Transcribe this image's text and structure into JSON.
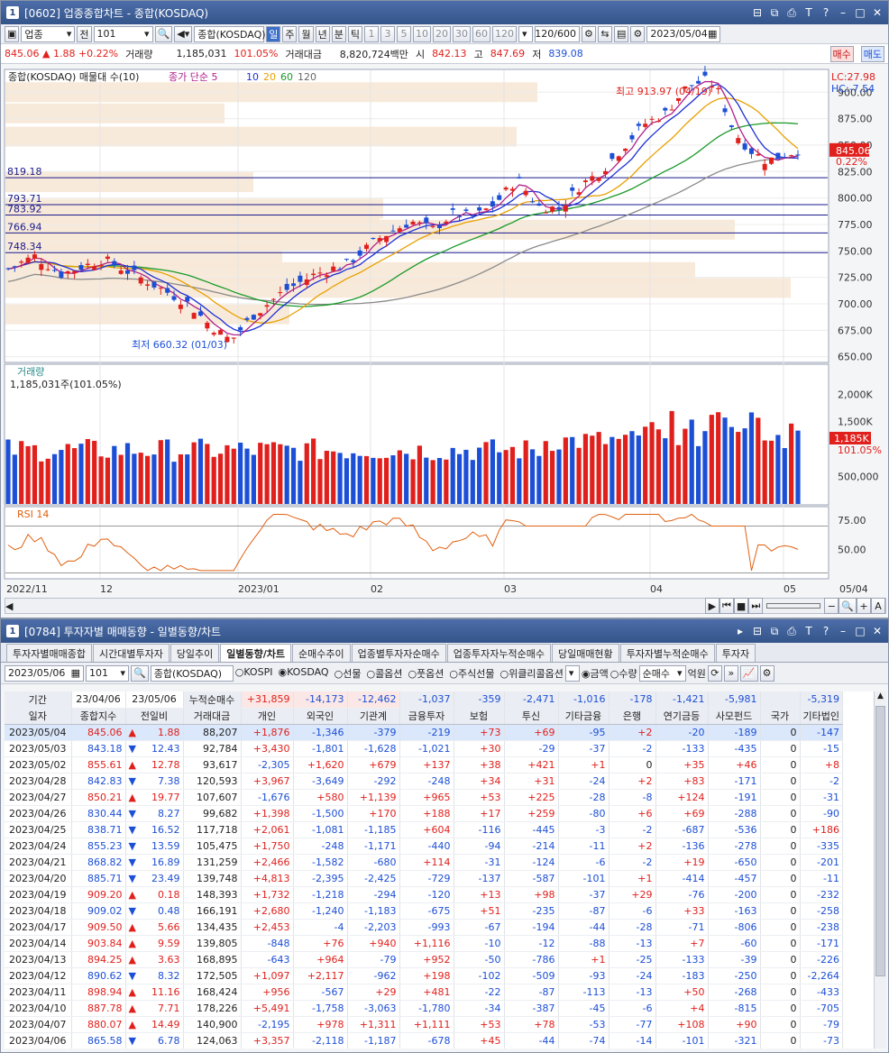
{
  "top": {
    "num": "1",
    "title": "[0602] 업종종합차트 - 종합(KOSDAQ)",
    "tb1": {
      "type": "업종",
      "sel": "전",
      "code": "101",
      "name": "종합(KOSDAQ)",
      "periods": [
        "일",
        "주",
        "월",
        "년",
        "분",
        "틱"
      ],
      "nums": [
        "1",
        "3",
        "5",
        "10",
        "20",
        "30",
        "60",
        "120"
      ],
      "count": "120/600",
      "date": "2023/05/04"
    },
    "q": {
      "price": "845.06",
      "chg": "1.88",
      "pct": "+0.22%",
      "vol_l": "거래량",
      "vol": "1,185,031",
      "vpct": "101.05%",
      "amt_l": "거래대금",
      "amt": "8,820,724백만",
      "o_l": "시",
      "o": "842.13",
      "h_l": "고",
      "h": "847.69",
      "l_l": "저",
      "l": "839.08",
      "buy": "매수",
      "sell": "매도"
    },
    "legend": {
      "name": "종합(KOSDAQ) 매물대 수(10)",
      "ma": "종가 단순 5",
      "m10": "10",
      "m20": "20",
      "m60": "60",
      "m120": "120"
    },
    "lc": "LC:27.98",
    "hc": "HC:-7.54",
    "hi": "최고 913.97 (04/19)",
    "lo": "최저 660.32 (01/03)",
    "last": "845.06",
    "lastpct": "0.22%",
    "levels": [
      "819.18",
      "793.71",
      "783.92",
      "766.94",
      "748.34"
    ],
    "yticks": [
      "900.00",
      "875.00",
      "850.00",
      "825.00",
      "800.00",
      "775.00",
      "750.00",
      "725.00",
      "700.00",
      "675.00",
      "650.00"
    ],
    "vol": {
      "title": "거래량",
      "info": "1,185,031주(101.05%)",
      "ticks": [
        "2,000K",
        "1,500K",
        "500,000"
      ],
      "last": "1,185K",
      "pct": "101.05%"
    },
    "rsi": {
      "title": "RSI 14",
      "ticks": [
        "75.00",
        "50.00"
      ]
    },
    "xticks": [
      "2022/11",
      "12",
      "2023/01",
      "02",
      "03",
      "04",
      "05",
      "05/04"
    ]
  },
  "bot": {
    "num": "1",
    "title": "[0784] 투자자별 매매동향 - 일별동향/차트",
    "tabs": [
      "투자자별매매종합",
      "시간대별투자자",
      "당일추이",
      "일별동향/차트",
      "순매수추이",
      "업종별투자자순매수",
      "업종투자자누적순매수",
      "당일매매현황",
      "투자자별누적순매수",
      "투자자"
    ],
    "f": {
      "date": "2023/05/06",
      "code": "101",
      "name": "종합(KOSDAQ)",
      "radios": [
        "KOSPI",
        "KOSDAQ",
        "선물",
        "콜옵션",
        "풋옵션",
        "주식선물",
        "위클리콜옵션"
      ],
      "r2": [
        "금액",
        "수량"
      ],
      "type": "순매수",
      "unit": "억원"
    },
    "per": {
      "label": "기간",
      "from": "23/04/06",
      "to": "23/05/06",
      "cum": "누적순매수",
      "vals": [
        "+31,859",
        "-14,173",
        "-12,462",
        "-1,037",
        "-359",
        "-2,471",
        "-1,016",
        "-178",
        "-1,421",
        "-5,981",
        "",
        "-5,319"
      ]
    },
    "cols": [
      "일자",
      "종합지수",
      "전일비",
      "거래대금",
      "개인",
      "외국인",
      "기관계",
      "금융투자",
      "보험",
      "투신",
      "기타금융",
      "은행",
      "연기금등",
      "사모펀드",
      "국가",
      "기타법인"
    ],
    "rows": [
      [
        "2023/05/04",
        "845.06",
        "u",
        "1.88",
        "88,207",
        "+1,876",
        "-1,346",
        "-379",
        "-219",
        "+73",
        "+69",
        "-95",
        "+2",
        "-20",
        "-189",
        "0",
        "-147"
      ],
      [
        "2023/05/03",
        "843.18",
        "d",
        "12.43",
        "92,784",
        "+3,430",
        "-1,801",
        "-1,628",
        "-1,021",
        "+30",
        "-29",
        "-37",
        "-2",
        "-133",
        "-435",
        "0",
        "-15"
      ],
      [
        "2023/05/02",
        "855.61",
        "u",
        "12.78",
        "93,617",
        "-2,305",
        "+1,620",
        "+679",
        "+137",
        "+38",
        "+421",
        "+1",
        "0",
        "+35",
        "+46",
        "0",
        "+8"
      ],
      [
        "2023/04/28",
        "842.83",
        "d",
        "7.38",
        "120,593",
        "+3,967",
        "-3,649",
        "-292",
        "-248",
        "+34",
        "+31",
        "-24",
        "+2",
        "+83",
        "-171",
        "0",
        "-2"
      ],
      [
        "2023/04/27",
        "850.21",
        "u",
        "19.77",
        "107,607",
        "-1,676",
        "+580",
        "+1,139",
        "+965",
        "+53",
        "+225",
        "-28",
        "-8",
        "+124",
        "-191",
        "0",
        "-31"
      ],
      [
        "2023/04/26",
        "830.44",
        "d",
        "8.27",
        "99,682",
        "+1,398",
        "-1,500",
        "+170",
        "+188",
        "+17",
        "+259",
        "-80",
        "+6",
        "+69",
        "-288",
        "0",
        "-90"
      ],
      [
        "2023/04/25",
        "838.71",
        "d",
        "16.52",
        "117,718",
        "+2,061",
        "-1,081",
        "-1,185",
        "+604",
        "-116",
        "-445",
        "-3",
        "-2",
        "-687",
        "-536",
        "0",
        "+186"
      ],
      [
        "2023/04/24",
        "855.23",
        "d",
        "13.59",
        "105,475",
        "+1,750",
        "-248",
        "-1,171",
        "-440",
        "-94",
        "-214",
        "-11",
        "+2",
        "-136",
        "-278",
        "0",
        "-335"
      ],
      [
        "2023/04/21",
        "868.82",
        "d",
        "16.89",
        "131,259",
        "+2,466",
        "-1,582",
        "-680",
        "+114",
        "-31",
        "-124",
        "-6",
        "-2",
        "+19",
        "-650",
        "0",
        "-201"
      ],
      [
        "2023/04/20",
        "885.71",
        "d",
        "23.49",
        "139,748",
        "+4,813",
        "-2,395",
        "-2,425",
        "-729",
        "-137",
        "-587",
        "-101",
        "+1",
        "-414",
        "-457",
        "0",
        "-11"
      ],
      [
        "2023/04/19",
        "909.20",
        "u",
        "0.18",
        "148,393",
        "+1,732",
        "-1,218",
        "-294",
        "-120",
        "+13",
        "+98",
        "-37",
        "+29",
        "-76",
        "-200",
        "0",
        "-232"
      ],
      [
        "2023/04/18",
        "909.02",
        "d",
        "0.48",
        "166,191",
        "+2,680",
        "-1,240",
        "-1,183",
        "-675",
        "+51",
        "-235",
        "-87",
        "-6",
        "+33",
        "-163",
        "0",
        "-258"
      ],
      [
        "2023/04/17",
        "909.50",
        "u",
        "5.66",
        "134,435",
        "+2,453",
        "-4",
        "-2,203",
        "-993",
        "-67",
        "-194",
        "-44",
        "-28",
        "-71",
        "-806",
        "0",
        "-238"
      ],
      [
        "2023/04/14",
        "903.84",
        "u",
        "9.59",
        "139,805",
        "-848",
        "+76",
        "+940",
        "+1,116",
        "-10",
        "-12",
        "-88",
        "-13",
        "+7",
        "-60",
        "0",
        "-171"
      ],
      [
        "2023/04/13",
        "894.25",
        "u",
        "3.63",
        "168,895",
        "-643",
        "+964",
        "-79",
        "+952",
        "-50",
        "-786",
        "+1",
        "-25",
        "-133",
        "-39",
        "0",
        "-226"
      ],
      [
        "2023/04/12",
        "890.62",
        "d",
        "8.32",
        "172,505",
        "+1,097",
        "+2,117",
        "-962",
        "+198",
        "-102",
        "-509",
        "-93",
        "-24",
        "-183",
        "-250",
        "0",
        "-2,264"
      ],
      [
        "2023/04/11",
        "898.94",
        "u",
        "11.16",
        "168,424",
        "+956",
        "-567",
        "+29",
        "+481",
        "-22",
        "-87",
        "-113",
        "-13",
        "+50",
        "-268",
        "0",
        "-433"
      ],
      [
        "2023/04/10",
        "887.78",
        "u",
        "7.71",
        "178,226",
        "+5,491",
        "-1,758",
        "-3,063",
        "-1,780",
        "-34",
        "-387",
        "-45",
        "-6",
        "+4",
        "-815",
        "0",
        "-705"
      ],
      [
        "2023/04/07",
        "880.07",
        "u",
        "14.49",
        "140,900",
        "-2,195",
        "+978",
        "+1,311",
        "+1,111",
        "+53",
        "+78",
        "-53",
        "-77",
        "+108",
        "+90",
        "0",
        "-79"
      ],
      [
        "2023/04/06",
        "865.58",
        "d",
        "6.78",
        "124,063",
        "+3,357",
        "-2,118",
        "-1,187",
        "-678",
        "+45",
        "-44",
        "-74",
        "-14",
        "-101",
        "-321",
        "0",
        "-73"
      ]
    ]
  }
}
